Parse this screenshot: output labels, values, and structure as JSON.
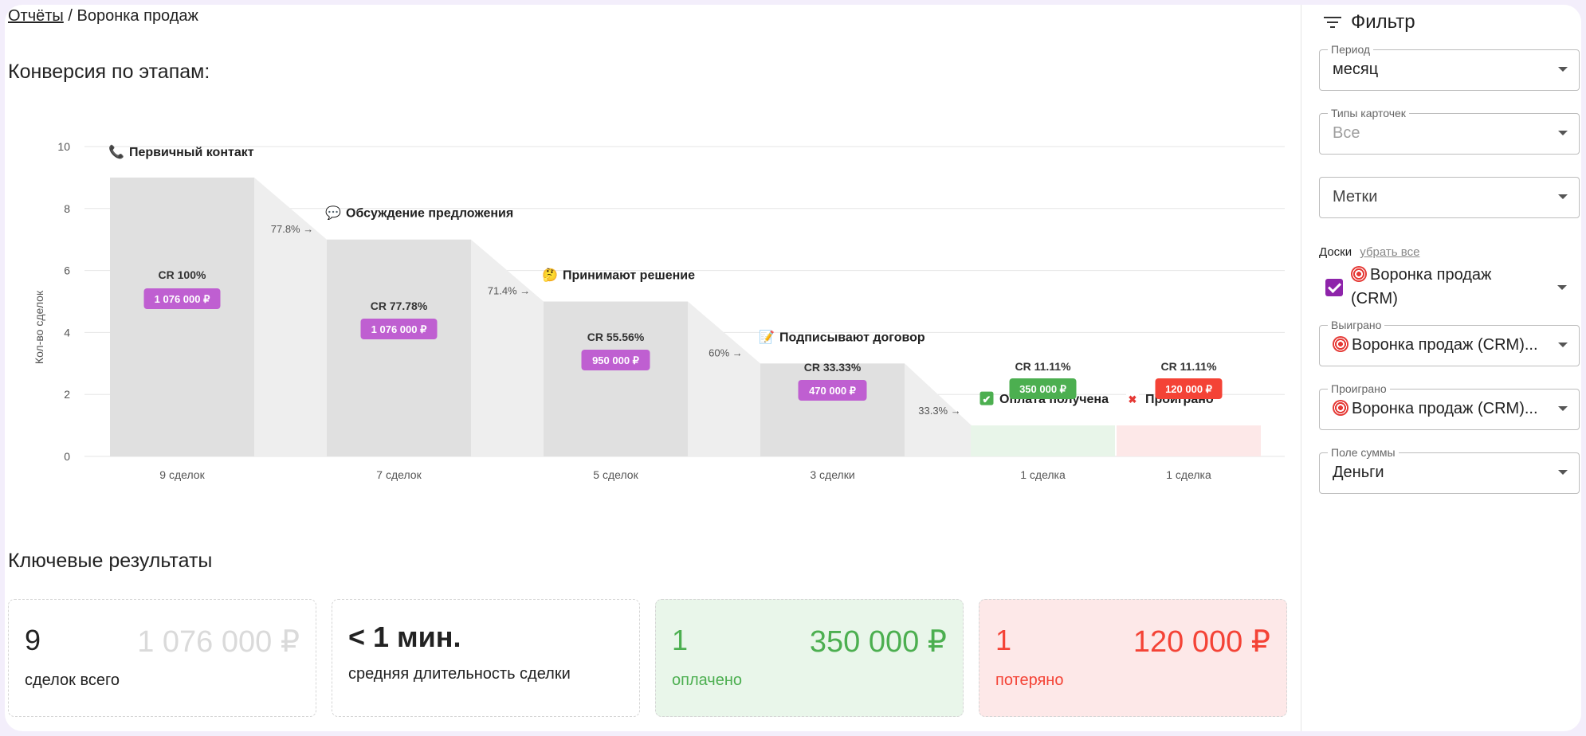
{
  "breadcrumb": {
    "root": "Отчёты",
    "separator": "/",
    "current": "Воронка продаж"
  },
  "sections": {
    "conversion_title": "Конверсия по этапам:",
    "results_title": "Ключевые результаты"
  },
  "colors": {
    "accent": "#9c27b0",
    "purple_badge": "#bf5fd1",
    "green": "#4caf50",
    "red": "#f44336",
    "bar": "#e0e0e0",
    "connector": "#eeeeee"
  },
  "chart_data": {
    "type": "bar",
    "ylabel": "Кол-во сделок",
    "ylim": [
      0,
      10
    ],
    "yticks": [
      0,
      2,
      4,
      6,
      8,
      10
    ],
    "grid": true,
    "stages": [
      {
        "name": "Первичный контакт",
        "icon": "phone-icon",
        "value": 9,
        "cr": "CR 100%",
        "amount": "1 076 000 ₽",
        "count_label": "9 сделок",
        "badge": "purple"
      },
      {
        "name": "Обсуждение предложения",
        "icon": "speech-bubble-icon",
        "value": 7,
        "cr": "CR 77.78%",
        "amount": "1 076 000 ₽",
        "count_label": "7 сделок",
        "badge": "purple"
      },
      {
        "name": "Принимают решение",
        "icon": "thinking-face-icon",
        "value": 5,
        "cr": "CR 55.56%",
        "amount": "950 000 ₽",
        "count_label": "5 сделок",
        "badge": "purple"
      },
      {
        "name": "Подписывают договор",
        "icon": "memo-icon",
        "value": 3,
        "cr": "CR 33.33%",
        "amount": "470 000 ₽",
        "count_label": "3 сделки",
        "badge": "purple"
      },
      {
        "name": "Оплата получена",
        "icon": "check-mark-icon",
        "value": 1,
        "cr": "CR 11.11%",
        "amount": "350 000 ₽",
        "count_label": "1 сделка",
        "badge": "green"
      },
      {
        "name": "Проиграно",
        "icon": "cross-mark-icon",
        "value": 1,
        "cr": "CR 11.11%",
        "amount": "120 000 ₽",
        "count_label": "1 сделка",
        "badge": "red"
      }
    ],
    "transitions": [
      "77.8% →",
      "71.4% →",
      "60% →",
      "33.3% →"
    ]
  },
  "results": {
    "total": {
      "count": "9",
      "amount": "1 076 000 ₽",
      "caption": "сделок всего"
    },
    "duration": {
      "value": "< 1 мин.",
      "caption": "средняя длительность сделки"
    },
    "paid": {
      "count": "1",
      "amount": "350 000 ₽",
      "caption": "оплачено"
    },
    "lost": {
      "count": "1",
      "amount": "120 000 ₽",
      "caption": "потеряно"
    }
  },
  "filter": {
    "title": "Фильтр",
    "period": {
      "label": "Период",
      "value": "месяц"
    },
    "card_types": {
      "label": "Типы карточек",
      "value": "Все"
    },
    "tags": {
      "placeholder": "Метки"
    },
    "boards": {
      "label": "Доски",
      "clear_link": "убрать все",
      "item": "Воронка продаж (CRM)",
      "checked": true
    },
    "won": {
      "label": "Выиграно",
      "value": "Воронка продаж (CRM)..."
    },
    "lost": {
      "label": "Проиграно",
      "value": "Воронка продаж (CRM)..."
    },
    "sum_field": {
      "label": "Поле суммы",
      "value": "Деньги"
    }
  }
}
